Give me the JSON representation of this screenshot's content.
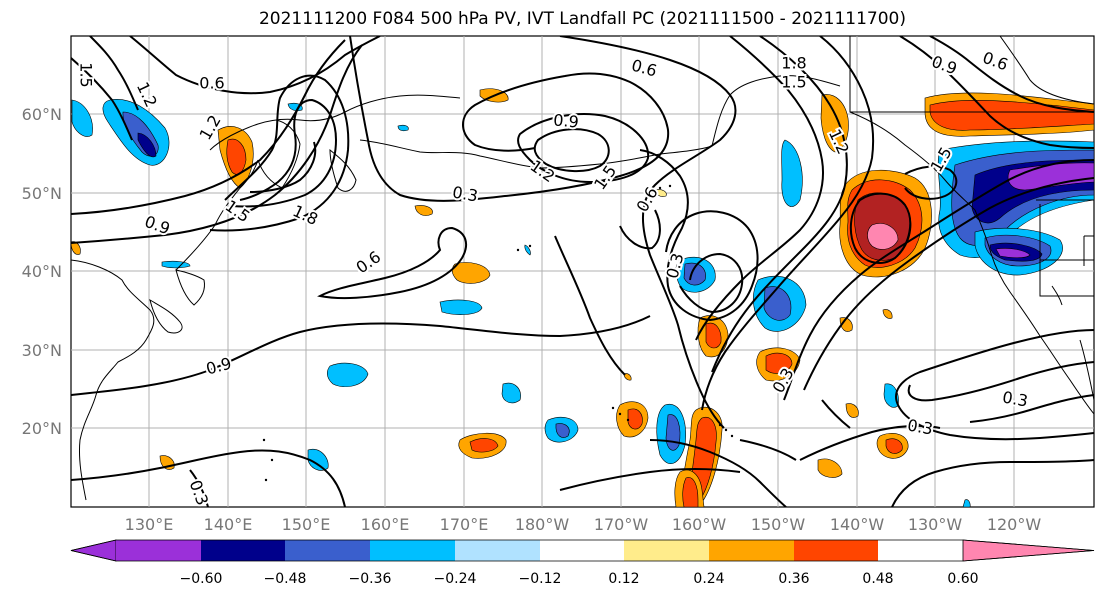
{
  "title": "2021111200 F084 500 hPa PV, IVT Landfall PC (2021111500 - 2021111700)",
  "lat_labels": [
    "60°N",
    "50°N",
    "40°N",
    "30°N",
    "20°N"
  ],
  "lon_labels": [
    "130°E",
    "140°E",
    "150°E",
    "160°E",
    "170°E",
    "180°W",
    "170°W",
    "160°W",
    "150°W",
    "140°W",
    "130°W",
    "120°W"
  ],
  "contour_labels": [
    "1.5",
    "1.2",
    "0.6",
    "1.2",
    "0.9",
    "1.5",
    "1.8",
    "0.3",
    "0.9",
    "1.2",
    "1.5",
    "0.6",
    "0.6",
    "1.8",
    "1.5",
    "0.9",
    "0.6",
    "1.2",
    "1.5",
    "0.3",
    "0.3",
    "0.9",
    "0.3",
    "0.3",
    "0.3",
    "0.6"
  ],
  "colorbar": {
    "colors": [
      "#9b30d9",
      "#00008b",
      "#3a5fcd",
      "#00bfff",
      "#b0e2ff",
      "#ffffff",
      "#ffec8b",
      "#ffa500",
      "#ff4500",
      "#b22222",
      "#ff86b0"
    ],
    "ticks": [
      "−0.60",
      "−0.48",
      "−0.36",
      "−0.24",
      "−0.12",
      "0.12",
      "0.24",
      "0.36",
      "0.48",
      "0.60"
    ]
  }
}
